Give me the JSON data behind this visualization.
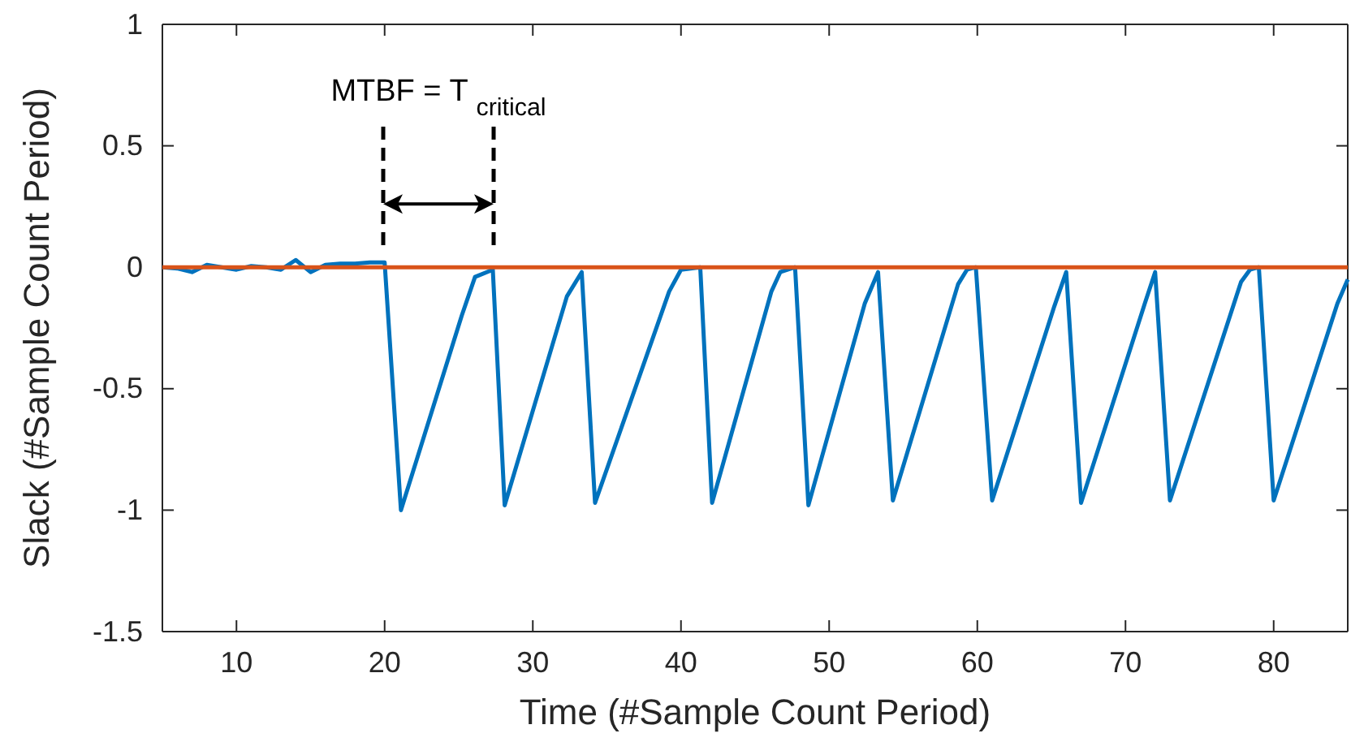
{
  "chart_data": {
    "type": "line",
    "xlabel": "Time (#Sample Count Period)",
    "ylabel": "Slack (#Sample Count Period)",
    "xlim": [
      5,
      85
    ],
    "xticks": [
      10,
      20,
      30,
      40,
      50,
      60,
      70,
      80
    ],
    "ylim": [
      -1.5,
      1
    ],
    "yticks": [
      -1.5,
      -1,
      -0.5,
      0,
      0.5,
      1
    ],
    "grid": false,
    "annotations": [
      "MTBF = T $_{critical}$"
    ],
    "series": [
      {
        "color": "#0072bd",
        "x": [
          5,
          6,
          7,
          8,
          9,
          10,
          11,
          12,
          13,
          14,
          15,
          16,
          17,
          18,
          19,
          20,
          21.1,
          25.2,
          26.1,
          27.3,
          28.1,
          32.3,
          33.3,
          34.2,
          39.2,
          40,
          41.3,
          42.1,
          46.1,
          46.7,
          47.7,
          48.6,
          52.4,
          53.3,
          54.3,
          58.7,
          59.3,
          59.9,
          61,
          65.2,
          66,
          67,
          71.3,
          72,
          73,
          77.8,
          78.4,
          79,
          80,
          84.3,
          85
        ],
        "values": [
          0,
          -0.005,
          -0.02,
          0.01,
          0,
          -0.01,
          0.005,
          0,
          -0.01,
          0.03,
          -0.02,
          0.01,
          0.015,
          0.015,
          0.02,
          0.02,
          -1,
          -0.2,
          -0.04,
          -0.01,
          -0.98,
          -0.12,
          -0.02,
          -0.97,
          -0.1,
          -0.01,
          0,
          -0.97,
          -0.1,
          -0.02,
          0,
          -0.98,
          -0.15,
          -0.02,
          -0.96,
          -0.07,
          -0.01,
          0,
          -0.96,
          -0.16,
          -0.02,
          -0.97,
          -0.15,
          -0.02,
          -0.96,
          -0.06,
          -0.01,
          0,
          -0.96,
          -0.15,
          -0.05
        ]
      },
      {
        "color": "#d95319",
        "x": [
          5,
          85
        ],
        "values": [
          0,
          0
        ]
      }
    ]
  }
}
